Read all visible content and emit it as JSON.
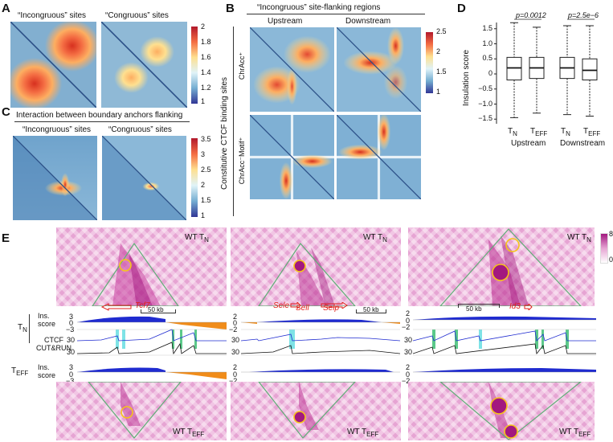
{
  "panels": {
    "A": {
      "letter": "A",
      "titles": [
        "“Incongruous” sites",
        "“Congruous” sites"
      ],
      "colorbar_ticks": [
        "2",
        "1.8",
        "1.6",
        "1.4",
        "1.2",
        "1"
      ]
    },
    "B": {
      "letter": "B",
      "title": "“Incongruous” site-flanking regions",
      "cols": [
        "Upstream",
        "Downstream"
      ],
      "row_group": "Constitutive CTCF binding sites",
      "rows": [
        "ChrAcc⁺",
        "ChrAcc⁻Motif⁺"
      ],
      "colorbar_ticks": [
        "2.5",
        "2",
        "1.5",
        "1"
      ]
    },
    "C": {
      "letter": "C",
      "title": "Interaction between boundary anchors flanking",
      "titles": [
        "“Incongruous” sites",
        "“Congruous” sites"
      ],
      "colorbar_ticks": [
        "3.5",
        "3",
        "2.5",
        "2",
        "1.5",
        "1"
      ]
    },
    "D": {
      "letter": "D",
      "ylabel": "Insulation score",
      "yticks": [
        "1.5",
        "1.0",
        "0.5",
        "0",
        "−0.5",
        "−1.0",
        "−1.5"
      ],
      "pvals": [
        "p=0.0012",
        "p=2.5e−6"
      ],
      "groups": [
        "Upstream",
        "Downstream"
      ],
      "box_labels": [
        "T",
        "T",
        "T",
        "T"
      ],
      "box_subs": [
        "N",
        "EFF",
        "N",
        "EFF"
      ]
    },
    "E": {
      "letter": "E",
      "top_label": "WT T",
      "top_sub": "N",
      "bottom_label": "WT T",
      "bottom_sub": "EFF",
      "colorbar_ticks": [
        "8",
        "0"
      ],
      "scale": "50 kb",
      "genes1": [
        "Tcf7"
      ],
      "genes2": [
        "Sele",
        "Sell",
        "Selp"
      ],
      "genes3": [
        "Id3"
      ],
      "track_tn": "T",
      "track_tn_sub": "N",
      "track_teff": "T",
      "track_teff_sub": "EFF",
      "ins_label1": "Ins.",
      "ins_label2": "score",
      "ctcf_label1": "CTCF",
      "ctcf_label2": "CUT&RUN",
      "ticks_ins1": [
        "3",
        "0",
        "−3"
      ],
      "ticks_ins2": [
        "2",
        "0",
        "−2"
      ],
      "ticks_ctcf": [
        "30",
        "30"
      ]
    }
  },
  "chart_data": {
    "type": "box",
    "title": "",
    "ylabel": "Insulation score",
    "ylim": [
      -1.6,
      1.6
    ],
    "categories": [
      "Upstream TN",
      "Upstream TEFF",
      "Downstream TN",
      "Downstream TEFF"
    ],
    "boxes": [
      {
        "min": -1.45,
        "q1": -0.2,
        "median": 0.2,
        "q3": 0.55,
        "max": 1.7
      },
      {
        "min": -1.3,
        "q1": -0.15,
        "median": 0.2,
        "q3": 0.55,
        "max": 1.55
      },
      {
        "min": -1.35,
        "q1": -0.15,
        "median": 0.2,
        "q3": 0.55,
        "max": 1.6
      },
      {
        "min": -1.4,
        "q1": -0.2,
        "median": 0.12,
        "q3": 0.5,
        "max": 1.6
      }
    ]
  }
}
